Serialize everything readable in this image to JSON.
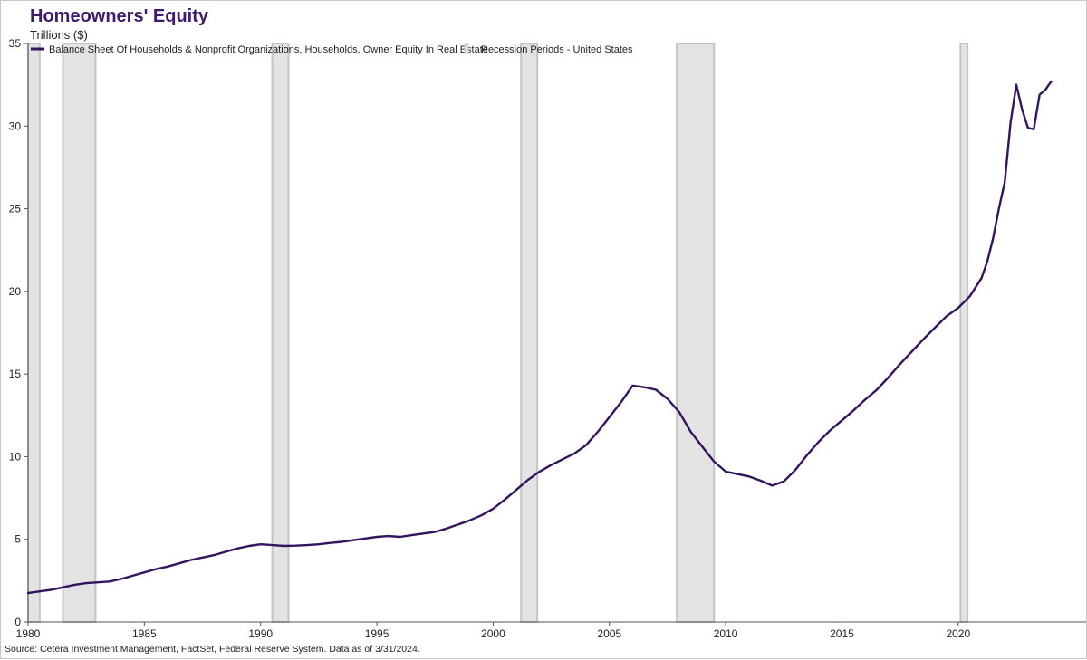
{
  "title": "Homeowners' Equity",
  "subtitle": "Trillions ($)",
  "source": "Source: Cetera Investment Management, FactSet, Federal Reserve System. Data as of 3/31/2024.",
  "colors": {
    "line": "#35145f",
    "recession": "#e3e3e3",
    "recession_edge": "#c4c4c4",
    "title": "#3f1a6e"
  },
  "chart_data": {
    "type": "line",
    "title": "Homeowners' Equity",
    "ylabel": "Trillions ($)",
    "xlim": [
      1980,
      2025.5
    ],
    "ylim": [
      0,
      35
    ],
    "x_ticks": [
      "1980",
      "1985",
      "1990",
      "1995",
      "2000",
      "2005",
      "2010",
      "2015",
      "2020"
    ],
    "y_ticks": [
      "0",
      "5",
      "10",
      "15",
      "20",
      "25",
      "30",
      "35"
    ],
    "legend": [
      {
        "name": "Balance Sheet Of Households & Nonprofit Organizations, Households, Owner Equity In Real Estate",
        "kind": "line"
      },
      {
        "name": "Recession Periods - United States",
        "kind": "bar"
      }
    ],
    "recessions": [
      [
        1980.0,
        1980.5
      ],
      [
        1981.5,
        1982.9
      ],
      [
        1990.5,
        1991.2
      ],
      [
        2001.2,
        2001.9
      ],
      [
        2007.9,
        2009.5
      ],
      [
        2020.1,
        2020.4
      ]
    ],
    "series": [
      {
        "name": "Balance Sheet Of Households & Nonprofit Organizations, Households, Owner Equity In Real Estate",
        "x": [
          1980.0,
          1980.5,
          1981.0,
          1981.5,
          1982.0,
          1982.5,
          1983.0,
          1983.5,
          1984.0,
          1984.5,
          1985.0,
          1985.5,
          1986.0,
          1986.5,
          1987.0,
          1987.5,
          1988.0,
          1988.5,
          1989.0,
          1989.5,
          1990.0,
          1990.5,
          1991.0,
          1991.5,
          1992.0,
          1992.5,
          1993.0,
          1993.5,
          1994.0,
          1994.5,
          1995.0,
          1995.5,
          1996.0,
          1996.5,
          1997.0,
          1997.5,
          1998.0,
          1998.5,
          1999.0,
          1999.5,
          2000.0,
          2000.5,
          2001.0,
          2001.5,
          2002.0,
          2002.5,
          2003.0,
          2003.5,
          2004.0,
          2004.5,
          2005.0,
          2005.5,
          2006.0,
          2006.5,
          2007.0,
          2007.5,
          2008.0,
          2008.5,
          2009.0,
          2009.5,
          2010.0,
          2010.5,
          2011.0,
          2011.5,
          2012.0,
          2012.5,
          2013.0,
          2013.5,
          2014.0,
          2014.5,
          2015.0,
          2015.5,
          2016.0,
          2016.5,
          2017.0,
          2017.5,
          2018.0,
          2018.5,
          2019.0,
          2019.5,
          2020.0,
          2020.5,
          2021.0,
          2021.25,
          2021.5,
          2021.75,
          2022.0,
          2022.25,
          2022.5,
          2022.75,
          2023.0,
          2023.25,
          2023.5,
          2023.75,
          2024.0
        ],
        "y": [
          1.75,
          1.85,
          1.95,
          2.1,
          2.25,
          2.35,
          2.4,
          2.45,
          2.6,
          2.8,
          3.0,
          3.2,
          3.35,
          3.55,
          3.75,
          3.9,
          4.05,
          4.25,
          4.45,
          4.6,
          4.7,
          4.65,
          4.6,
          4.62,
          4.65,
          4.7,
          4.78,
          4.85,
          4.95,
          5.05,
          5.15,
          5.2,
          5.15,
          5.25,
          5.35,
          5.45,
          5.65,
          5.9,
          6.15,
          6.45,
          6.85,
          7.4,
          8.0,
          8.6,
          9.1,
          9.5,
          9.85,
          10.2,
          10.7,
          11.5,
          12.4,
          13.3,
          14.3,
          14.2,
          14.05,
          13.5,
          12.7,
          11.5,
          10.6,
          9.7,
          9.1,
          8.95,
          8.8,
          8.55,
          8.25,
          8.5,
          9.2,
          10.1,
          10.9,
          11.6,
          12.2,
          12.8,
          13.45,
          14.05,
          14.8,
          15.6,
          16.35,
          17.1,
          17.8,
          18.5,
          19.0,
          19.7,
          20.8,
          21.8,
          23.2,
          25.0,
          26.6,
          30.2,
          32.5,
          31.0,
          29.9,
          29.8,
          31.9,
          32.2,
          32.7
        ]
      }
    ]
  }
}
